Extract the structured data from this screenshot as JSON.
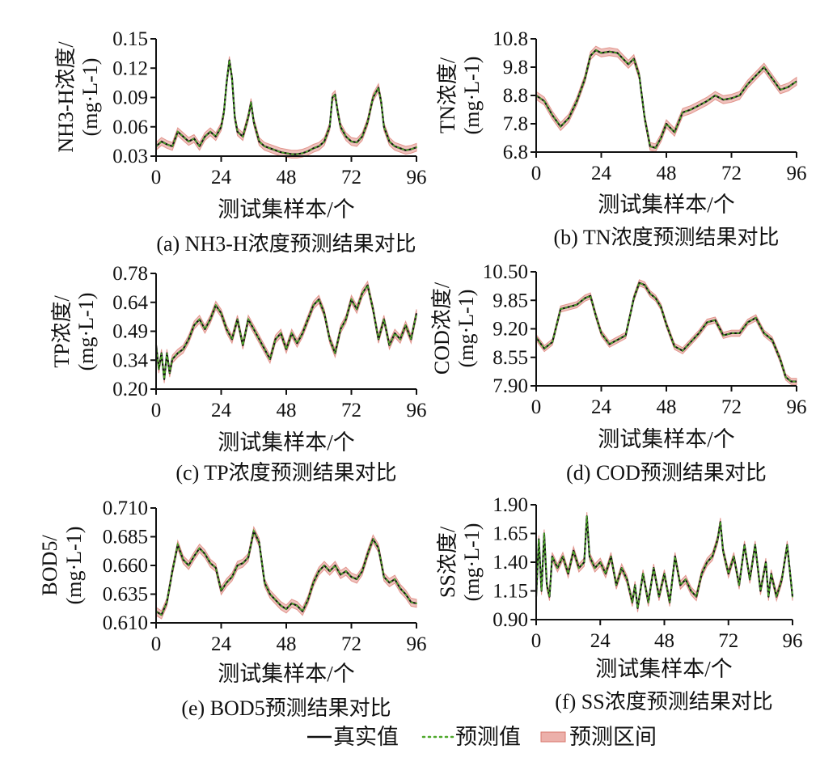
{
  "legend": {
    "true_label": "真实值",
    "pred_label": "预测值",
    "interval_label": "预测区间",
    "true_color": "#111111",
    "pred_color": "#4ea82a",
    "interval_color": "#e48f86"
  },
  "chart_data": [
    {
      "id": "a",
      "type": "line",
      "caption": "(a) NH3-H浓度预测结果对比",
      "ylabel_line1": "NH3-H浓度/",
      "ylabel_line2": "(mg·L-1)",
      "xlabel": "测试集样本/个",
      "xlim": [
        0,
        96
      ],
      "ylim": [
        0.03,
        0.15
      ],
      "xticks": [
        "0",
        "24",
        "48",
        "72",
        "96"
      ],
      "yticks": [
        "0.03",
        "0.06",
        "0.09",
        "0.12",
        "0.15"
      ],
      "band_half_width": 0.004,
      "x": [
        0,
        2,
        4,
        6,
        8,
        10,
        12,
        14,
        16,
        18,
        20,
        22,
        24,
        25,
        26,
        27,
        28,
        29,
        30,
        32,
        34,
        35,
        36,
        38,
        40,
        42,
        44,
        46,
        48,
        50,
        52,
        54,
        56,
        58,
        60,
        62,
        64,
        65,
        66,
        67,
        68,
        70,
        72,
        74,
        76,
        78,
        80,
        82,
        83,
        84,
        86,
        88,
        90,
        92,
        94,
        96
      ],
      "values": [
        0.04,
        0.045,
        0.042,
        0.04,
        0.055,
        0.05,
        0.045,
        0.048,
        0.04,
        0.05,
        0.055,
        0.05,
        0.06,
        0.075,
        0.105,
        0.128,
        0.11,
        0.07,
        0.055,
        0.05,
        0.07,
        0.085,
        0.065,
        0.045,
        0.04,
        0.038,
        0.036,
        0.034,
        0.033,
        0.032,
        0.032,
        0.033,
        0.035,
        0.038,
        0.04,
        0.045,
        0.06,
        0.09,
        0.093,
        0.075,
        0.06,
        0.05,
        0.045,
        0.044,
        0.05,
        0.065,
        0.09,
        0.1,
        0.085,
        0.06,
        0.045,
        0.04,
        0.038,
        0.036,
        0.037,
        0.039
      ]
    },
    {
      "id": "b",
      "type": "line",
      "caption": "(b) TN浓度预测结果对比",
      "ylabel_line1": "TN浓度/",
      "ylabel_line2": "(mg·L-1)",
      "xlabel": "测试集样本/个",
      "xlim": [
        0,
        96
      ],
      "ylim": [
        6.8,
        10.8
      ],
      "xticks": [
        "0",
        "24",
        "48",
        "72",
        "96"
      ],
      "yticks": [
        "6.8",
        "7.8",
        "8.8",
        "9.8",
        "10.8"
      ],
      "band_half_width": 0.14,
      "x": [
        0,
        3,
        6,
        9,
        12,
        15,
        18,
        20,
        22,
        24,
        27,
        30,
        32,
        34,
        36,
        38,
        40,
        42,
        44,
        46,
        48,
        51,
        54,
        57,
        60,
        63,
        66,
        69,
        72,
        75,
        78,
        81,
        84,
        87,
        90,
        93,
        96
      ],
      "values": [
        8.8,
        8.6,
        8.1,
        7.7,
        8.0,
        8.6,
        9.4,
        10.2,
        10.4,
        10.3,
        10.35,
        10.3,
        10.1,
        9.9,
        10.1,
        9.5,
        8.0,
        7.0,
        6.95,
        7.3,
        7.8,
        7.5,
        8.2,
        8.3,
        8.45,
        8.6,
        8.8,
        8.65,
        8.7,
        8.8,
        9.2,
        9.5,
        9.8,
        9.4,
        9.0,
        9.1,
        9.3
      ]
    },
    {
      "id": "c",
      "type": "line",
      "caption": "(c) TP浓度预测结果对比",
      "ylabel_line1": "TP浓度/",
      "ylabel_line2": "(mg·L-1)",
      "xlabel": "测试集样本/个",
      "xlim": [
        0,
        96
      ],
      "ylim": [
        0.2,
        0.78
      ],
      "xticks": [
        "0",
        "24",
        "48",
        "72",
        "96"
      ],
      "yticks": [
        "0.20",
        "0.34",
        "0.49",
        "0.64",
        "0.78"
      ],
      "band_half_width": 0.02,
      "x": [
        0,
        1,
        2,
        3,
        4,
        5,
        6,
        8,
        10,
        12,
        14,
        16,
        18,
        20,
        22,
        24,
        26,
        28,
        30,
        32,
        34,
        36,
        38,
        40,
        42,
        44,
        46,
        48,
        50,
        52,
        54,
        56,
        58,
        60,
        62,
        64,
        66,
        68,
        70,
        72,
        74,
        76,
        78,
        80,
        82,
        84,
        86,
        88,
        90,
        92,
        94,
        96
      ],
      "values": [
        0.42,
        0.3,
        0.38,
        0.25,
        0.38,
        0.28,
        0.35,
        0.38,
        0.4,
        0.45,
        0.52,
        0.55,
        0.5,
        0.55,
        0.62,
        0.58,
        0.5,
        0.45,
        0.55,
        0.42,
        0.55,
        0.5,
        0.45,
        0.4,
        0.35,
        0.45,
        0.48,
        0.4,
        0.48,
        0.43,
        0.48,
        0.55,
        0.62,
        0.65,
        0.58,
        0.45,
        0.38,
        0.5,
        0.55,
        0.65,
        0.6,
        0.68,
        0.72,
        0.6,
        0.45,
        0.55,
        0.42,
        0.48,
        0.45,
        0.52,
        0.45,
        0.58
      ]
    },
    {
      "id": "d",
      "type": "line",
      "caption": "(d) COD预测结果对比",
      "ylabel_line1": "COD浓度/",
      "ylabel_line2": "(mg·L-1)",
      "xlabel": "测试集样本/个",
      "xlim": [
        0,
        96
      ],
      "ylim": [
        7.9,
        10.5
      ],
      "xticks": [
        "0",
        "24",
        "48",
        "72",
        "96"
      ],
      "yticks": [
        "7.90",
        "8.55",
        "9.20",
        "9.85",
        "10.50"
      ],
      "band_half_width": 0.07,
      "x": [
        0,
        3,
        6,
        9,
        12,
        15,
        18,
        20,
        22,
        24,
        27,
        30,
        33,
        36,
        38,
        40,
        42,
        44,
        46,
        48,
        51,
        54,
        57,
        60,
        63,
        66,
        69,
        72,
        75,
        78,
        81,
        84,
        87,
        90,
        92,
        94,
        96
      ],
      "values": [
        9.0,
        8.75,
        8.9,
        9.65,
        9.7,
        9.75,
        9.9,
        9.95,
        9.5,
        9.1,
        8.85,
        8.95,
        9.05,
        9.9,
        10.25,
        10.2,
        10.0,
        9.9,
        9.7,
        9.3,
        8.8,
        8.7,
        8.9,
        9.1,
        9.35,
        9.4,
        9.05,
        9.1,
        9.1,
        9.35,
        9.45,
        9.1,
        8.95,
        8.5,
        8.1,
        8.0,
        8.0
      ]
    },
    {
      "id": "e",
      "type": "line",
      "caption": "(e) BOD5预测结果对比",
      "ylabel_line1": "BOD5/",
      "ylabel_line2": "(mg·L-1)",
      "xlabel": "测试集样本/个",
      "xlim": [
        0,
        96
      ],
      "ylim": [
        0.61,
        0.71
      ],
      "xticks": [
        "0",
        "24",
        "48",
        "72",
        "96"
      ],
      "yticks": [
        "0.610",
        "0.635",
        "0.660",
        "0.685",
        "0.710"
      ],
      "band_half_width": 0.0035,
      "x": [
        0,
        2,
        4,
        6,
        8,
        10,
        12,
        14,
        16,
        18,
        20,
        22,
        24,
        26,
        28,
        30,
        32,
        34,
        36,
        38,
        40,
        42,
        44,
        46,
        48,
        50,
        52,
        54,
        56,
        58,
        60,
        62,
        64,
        66,
        68,
        70,
        72,
        74,
        76,
        78,
        80,
        82,
        84,
        86,
        88,
        90,
        92,
        94,
        96
      ],
      "values": [
        0.62,
        0.617,
        0.628,
        0.655,
        0.678,
        0.665,
        0.66,
        0.668,
        0.675,
        0.67,
        0.662,
        0.658,
        0.638,
        0.645,
        0.65,
        0.66,
        0.662,
        0.667,
        0.69,
        0.68,
        0.645,
        0.635,
        0.63,
        0.625,
        0.622,
        0.627,
        0.625,
        0.62,
        0.63,
        0.645,
        0.655,
        0.66,
        0.655,
        0.66,
        0.652,
        0.655,
        0.65,
        0.648,
        0.655,
        0.67,
        0.683,
        0.675,
        0.65,
        0.645,
        0.648,
        0.64,
        0.635,
        0.628,
        0.627
      ]
    },
    {
      "id": "f",
      "type": "line",
      "caption": "(f) SS浓度预测结果对比",
      "ylabel_line1": "SS浓度/",
      "ylabel_line2": "(mg·L-1)",
      "xlabel": "测试集样本/个",
      "xlim": [
        0,
        96
      ],
      "ylim": [
        0.9,
        1.9
      ],
      "xticks": [
        "0",
        "24",
        "48",
        "72",
        "96"
      ],
      "yticks": [
        "0.90",
        "1.15",
        "1.40",
        "1.65",
        "1.90"
      ],
      "band_half_width": 0.035,
      "x": [
        0,
        1,
        2,
        3,
        4,
        5,
        6,
        8,
        10,
        12,
        14,
        16,
        18,
        19,
        20,
        22,
        24,
        26,
        28,
        30,
        32,
        34,
        36,
        37,
        38,
        40,
        42,
        44,
        46,
        48,
        50,
        52,
        54,
        56,
        58,
        60,
        62,
        64,
        66,
        68,
        69,
        70,
        72,
        74,
        76,
        78,
        80,
        82,
        84,
        86,
        87,
        88,
        90,
        92,
        94,
        96
      ],
      "values": [
        1.1,
        1.6,
        1.15,
        1.65,
        1.2,
        1.1,
        1.45,
        1.35,
        1.45,
        1.3,
        1.5,
        1.35,
        1.4,
        1.8,
        1.45,
        1.35,
        1.4,
        1.3,
        1.45,
        1.2,
        1.35,
        1.25,
        1.05,
        1.2,
        1.0,
        1.3,
        1.05,
        1.35,
        1.1,
        1.3,
        1.05,
        1.45,
        1.2,
        1.25,
        1.15,
        1.1,
        1.3,
        1.4,
        1.45,
        1.6,
        1.75,
        1.5,
        1.3,
        1.45,
        1.2,
        1.55,
        1.25,
        1.55,
        1.15,
        1.4,
        1.1,
        1.3,
        1.1,
        1.25,
        1.55,
        1.1
      ]
    }
  ]
}
